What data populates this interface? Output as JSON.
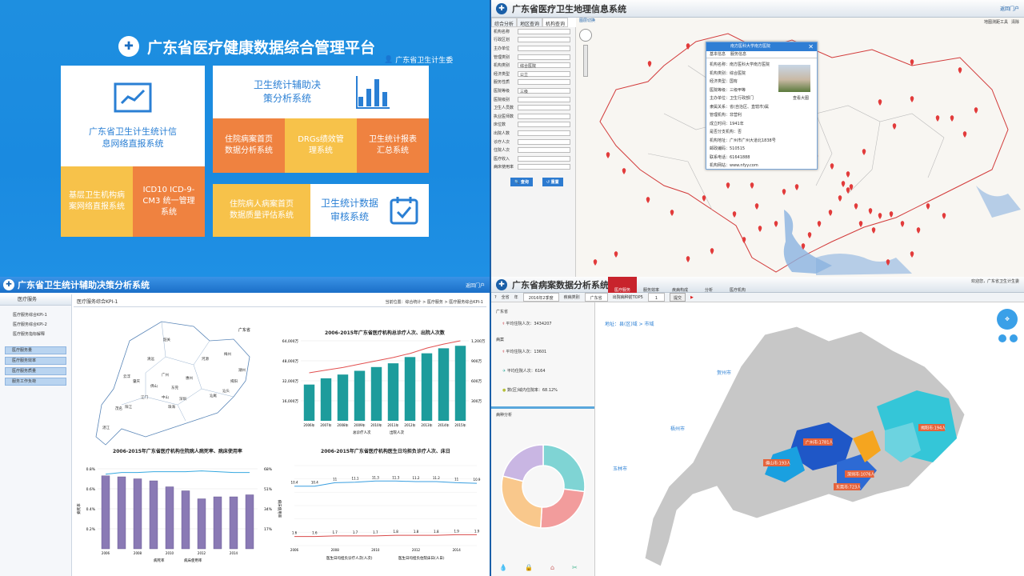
{
  "q1": {
    "title": "广东省医疗健康数据综合管理平台",
    "user": "广东省卫生计生委",
    "tiles": {
      "netreport": "广东省卫生计生统计信息网络直报系统",
      "grassroots": "基层卫生机构病案网络直报系统",
      "icd": "ICD10 ICD-9-CM3 统一管理系统",
      "decision": "卫生统计辅助决策分析系统",
      "homepage": "住院病案首页数据分析系统",
      "drgs": "DRGs绩效管理系统",
      "report": "卫生统计报表汇总系统",
      "quality": "住院病人病案首页数据质量评估系统",
      "audit": "卫生统计数据审核系统"
    }
  },
  "q2": {
    "title": "广东省医疗卫生地理信息系统",
    "top_right": "返回门户",
    "tabs": [
      "综合分析",
      "地区查询",
      "机构查询"
    ],
    "toolbar": "图层切换",
    "right_links": [
      "地图测距工具",
      "清除"
    ],
    "form_rows": [
      "机构名称",
      "行政区划",
      "主办单位",
      "管理类别",
      "机构类别",
      "经济类型",
      "服务性质",
      "医院等级",
      "医院级别",
      "卫生人员数",
      "执业医师数",
      "床位数",
      "出院人数",
      "诊疗人次",
      "住院人次",
      "医疗收入",
      "病床使用率"
    ],
    "form_values": {
      "机构类别": "综合医院",
      "经济类型": "公立",
      "医院等级": "三级"
    },
    "btn_search": "查询",
    "btn_reset": "重置",
    "popup": {
      "title": "南方医科大学南方医院",
      "tabs": [
        "基本信息",
        "服务信息"
      ],
      "lines": [
        "机构名称：南方医科大学南方医院",
        "机构类别：综合医院",
        "经济类型：国有",
        "医院等级：三级甲等",
        "主办单位：卫生行政部门",
        "隶属关系：省(自治区、直辖市)属",
        "管理机构：非营利",
        "成立时间：1941年",
        "是否分支机构：否",
        "机构地址：广州市广州大道北1838号",
        "邮政编码：510515",
        "联系电话：61641888",
        "机构网站：www.nfyy.com"
      ],
      "img_caption": "查看大图"
    }
  },
  "q3": {
    "title": "广东省卫生统计辅助决策分析系统",
    "top_right": "返回门户",
    "side_header": "医疗服务",
    "side_items": [
      "医疗服务综合KPI-1",
      "医疗服务综合KPI-2",
      "医疗服务指标解释"
    ],
    "side_buttons": [
      "医疗服务量",
      "医疗服务效率",
      "医疗服务质量",
      "服务工作负荷"
    ],
    "main_title": "医疗服务综合KPI-1",
    "breadcrumb": "当前位置：综合统计 > 医疗服务 > 医疗服务综合KPI-1",
    "map_label": "广东省",
    "map_cities": [
      "韶关",
      "清远",
      "肇庆",
      "广州",
      "惠州",
      "河源",
      "梅州",
      "潮州",
      "揭阳",
      "汕头",
      "汕尾",
      "东莞",
      "深圳",
      "佛山",
      "中山",
      "江门",
      "云浮",
      "茂名",
      "湛江",
      "阳江",
      "珠海"
    ],
    "chart_a": {
      "title": "2006-2015年广东省医疗机构总诊疗人次、出院人次数",
      "years": [
        "2006年",
        "2007年",
        "2008年",
        "2009年",
        "2010年",
        "2011年",
        "2012年",
        "2013年",
        "2014年",
        "2015年"
      ],
      "bars": [
        29000,
        34000,
        37000,
        40000,
        43000,
        46000,
        51000,
        54000,
        58000,
        60000
      ],
      "line": [
        720,
        760,
        800,
        850,
        900,
        950,
        1010,
        1090,
        1150,
        1200
      ],
      "y_ticks": [
        "16,000万",
        "32,000万",
        "48,000万",
        "64,000万"
      ],
      "y2_ticks": [
        "300万",
        "600万",
        "900万",
        "1,200万"
      ],
      "legend": [
        "总诊疗人次",
        "出院人次"
      ]
    },
    "chart_b": {
      "title": "2006-2015年广东省医疗机构住院病人病死率、病床使用率",
      "years": [
        "2006",
        "2008",
        "2010",
        "2012",
        "2014"
      ],
      "bars": [
        0.73,
        0.72,
        0.7,
        0.68,
        0.62,
        0.58,
        0.5,
        0.52,
        0.52,
        0.54
      ],
      "line": [
        92,
        94,
        94,
        95,
        95,
        95,
        96,
        95,
        94,
        94
      ],
      "y_ticks": [
        "0.2%",
        "0.4%",
        "0.6%",
        "0.8%"
      ],
      "y2_ticks": [
        "17%",
        "34%",
        "51%",
        "68%"
      ],
      "ylabel": "病死率",
      "y2label": "病床使用率",
      "legend": [
        "病死率",
        "病床使用率"
      ]
    },
    "chart_c": {
      "title": "2006-2015年广东省医疗机构医生日均担负诊疗人次、床日",
      "years": [
        "2006",
        "2008",
        "2010",
        "2012",
        "2014"
      ],
      "line1": [
        10.4,
        10.4,
        11.0,
        11.1,
        11.3,
        11.3,
        11.2,
        11.2,
        11.0,
        10.9
      ],
      "line2": [
        1.6,
        1.6,
        1.7,
        1.7,
        1.7,
        1.8,
        1.8,
        1.8,
        1.9,
        1.9
      ],
      "legend": [
        "医生日均担负诊疗人次(人次)",
        "医生日均担负住院床日(人日)"
      ]
    }
  },
  "q4": {
    "title": "广东省病案数据分析系统",
    "nav": [
      "医疗服务",
      "服务效率",
      "疾病构成",
      "分析",
      "医疗机构"
    ],
    "top_right": "欢迎您，广东省卫生计生委",
    "tool": [
      "全省",
      "年",
      "2016年2季度",
      "疾病类别",
      "广东省",
      "出院病种前TOP5",
      "提交"
    ],
    "panel_title": "广东省",
    "stats": [
      "平均住院人次：3434207",
      "平均住院人次：13601",
      "平均住院人次：6164",
      "数(区)域内住院率：68.12%"
    ],
    "panel_sub": "病案",
    "pie_title": "病种分析",
    "pie": [
      27,
      24,
      28,
      21
    ],
    "pie_colors": [
      "#7fd4d4",
      "#f29c9c",
      "#f9c88c",
      "#c9b6e3"
    ],
    "breadcrumb": "地址：县(区)域 > 市域",
    "cities_left": [
      "贺州市",
      "梧州市",
      "玉林市"
    ],
    "callouts": [
      "广州市:1781人",
      "佛山市:193人",
      "深圳市:1076人",
      "揭阳市:194人",
      "东莞市:723人"
    ]
  }
}
